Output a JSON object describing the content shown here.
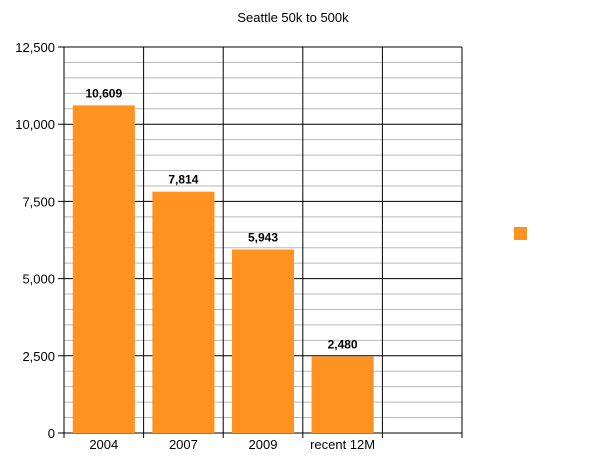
{
  "chart_data": {
    "type": "bar",
    "title": "Seattle 50k to 500k",
    "categories": [
      "2004",
      "2007",
      "2009",
      "recent 12M",
      ""
    ],
    "values": [
      10609,
      7814,
      5943,
      2480,
      null
    ],
    "data_labels": [
      "10,609",
      "7,814",
      "5,943",
      "2,480",
      ""
    ],
    "y_ticks": [
      0,
      2500,
      5000,
      7500,
      10000,
      12500
    ],
    "y_tick_labels": [
      "0",
      "2,500",
      "5,000",
      "7,500",
      "10,000",
      "12,500"
    ],
    "ylim": [
      0,
      12500
    ],
    "xlabel": "",
    "ylabel": "",
    "grid": true,
    "legend": "right",
    "colors": {
      "bar": "#ff9221",
      "bar_stroke": "#e07a10",
      "grid_major": "#000000",
      "grid_minor": "#b8b8b8",
      "legend_swatch": "#ff9221"
    }
  }
}
